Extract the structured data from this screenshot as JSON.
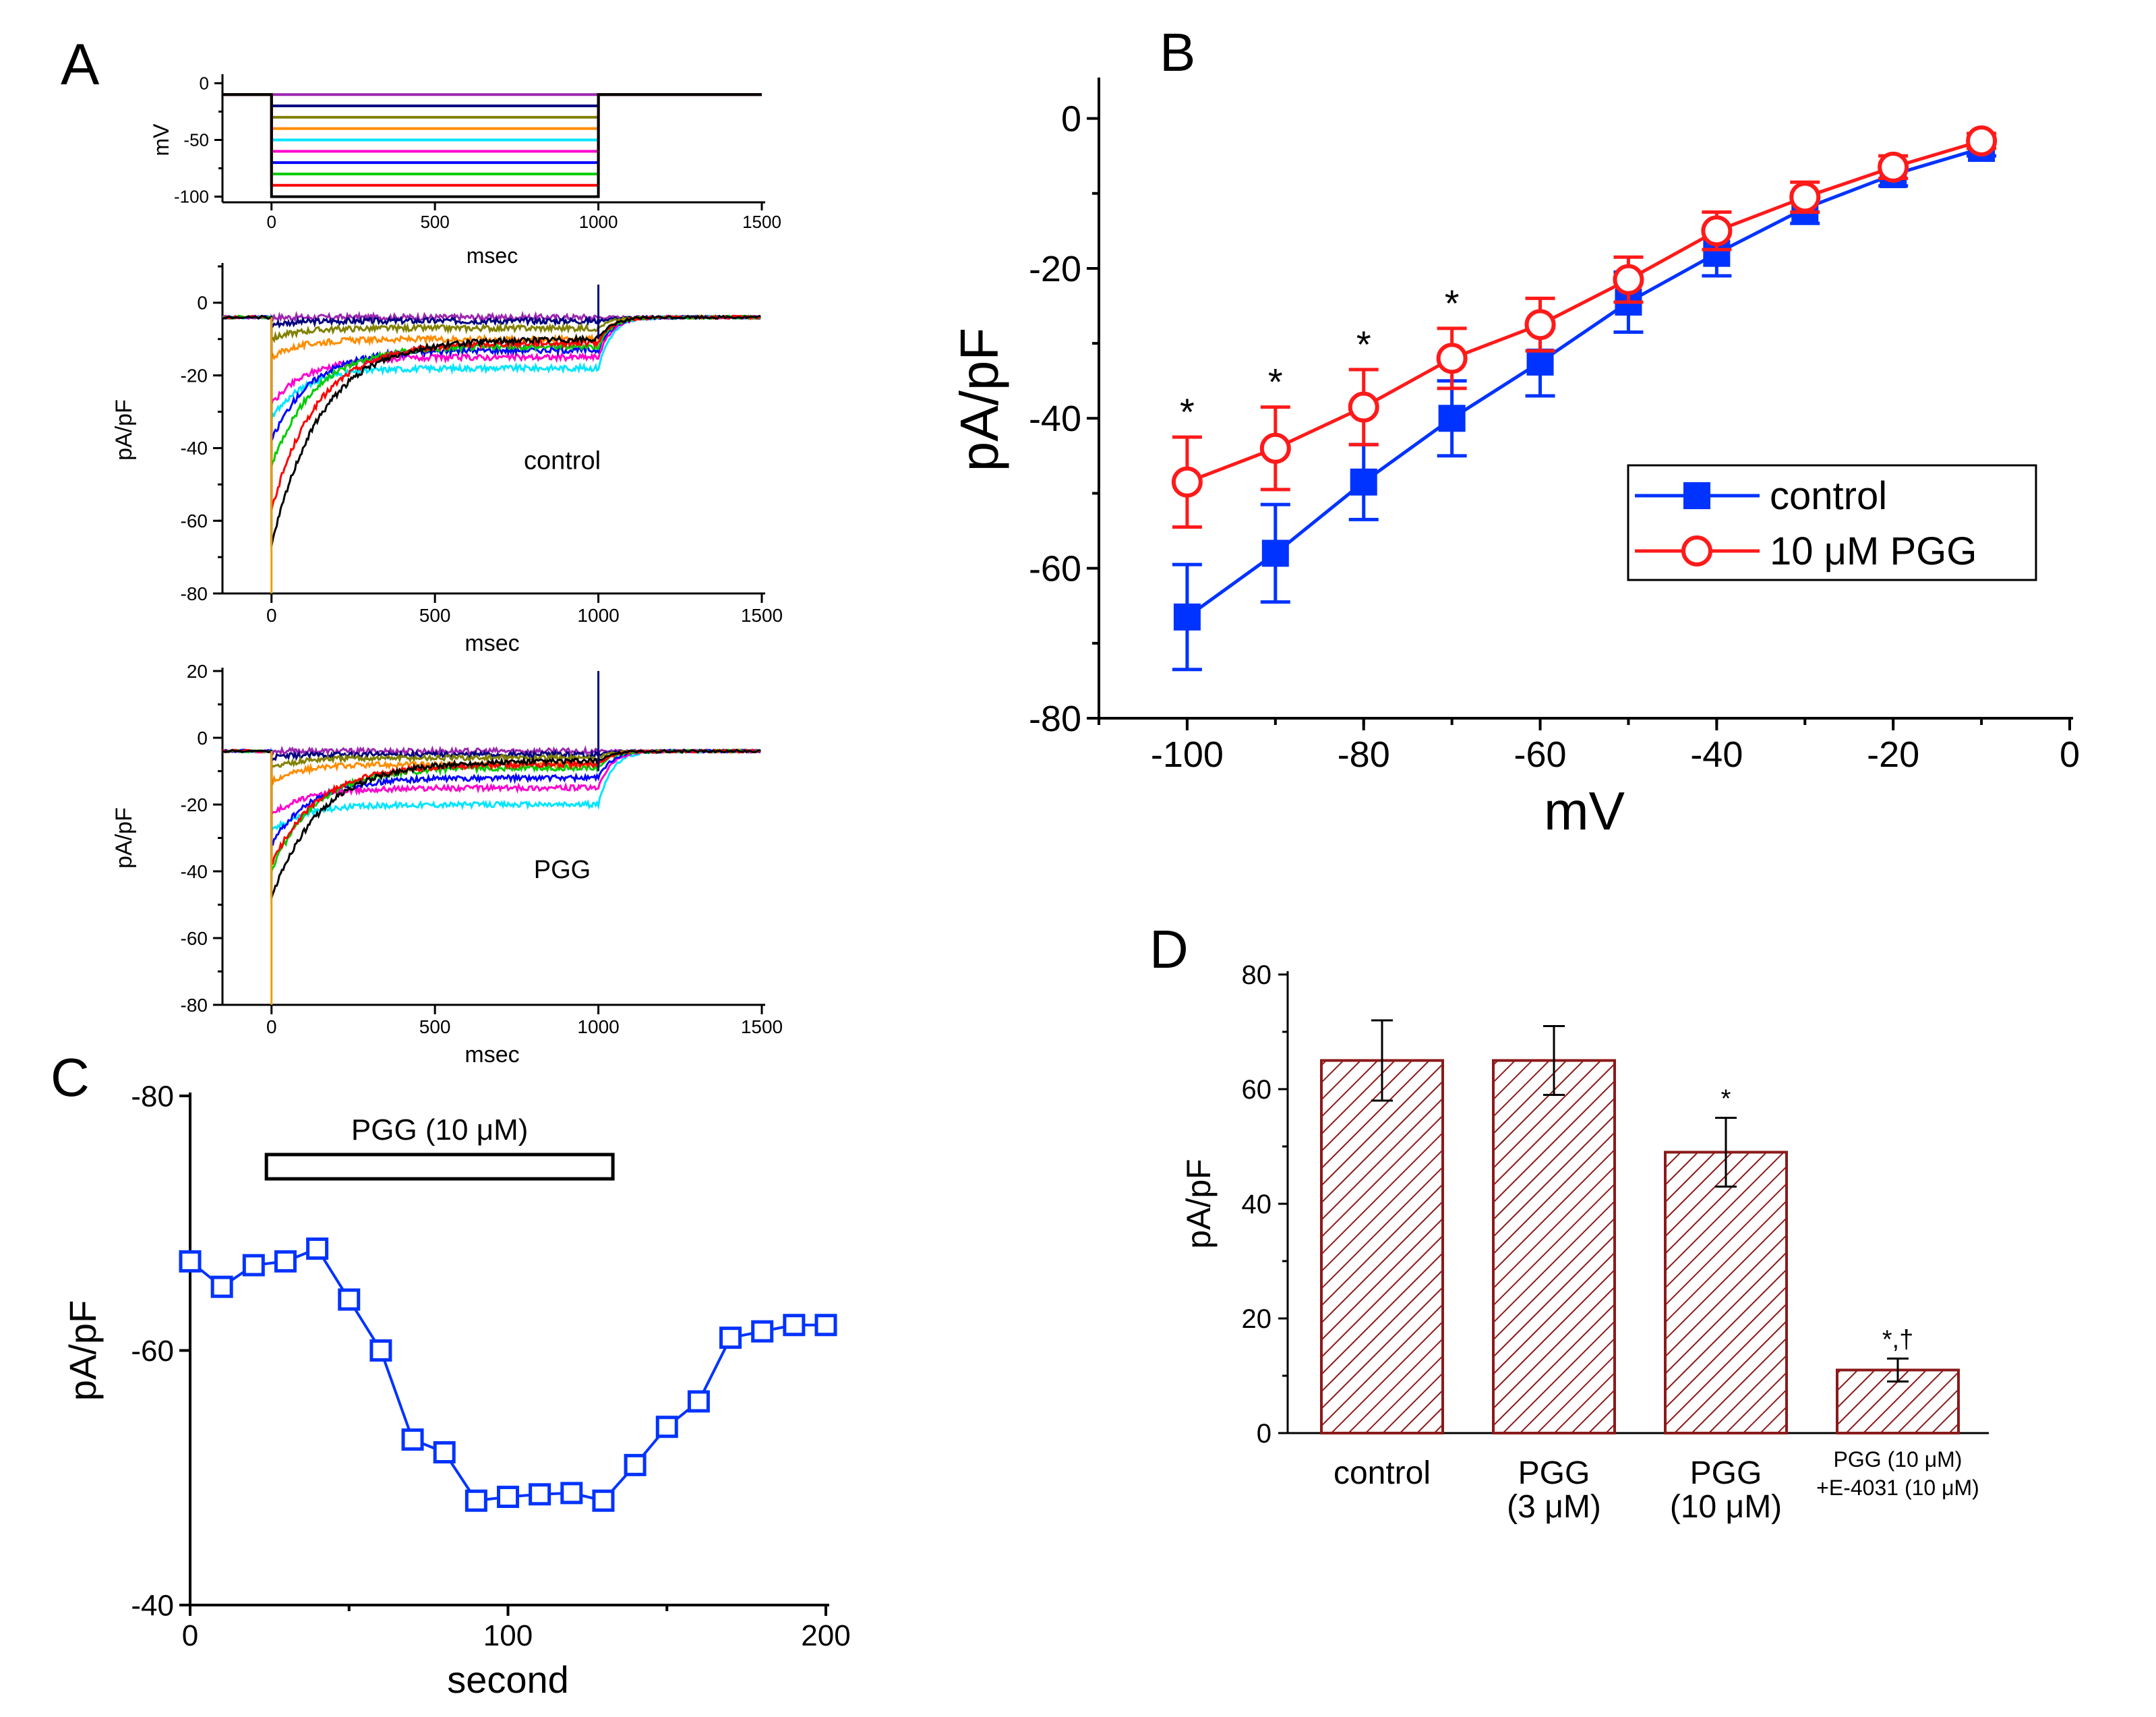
{
  "panel_labels": {
    "a": "A",
    "b": "B",
    "c": "C",
    "d": "D"
  },
  "chart_data": [
    {
      "id": "A1",
      "type": "line",
      "title": "",
      "xlabel": "msec",
      "ylabel": "mV",
      "xlim": [
        -150,
        1500
      ],
      "ylim": [
        -105,
        5
      ],
      "x_ticks": [
        "0",
        "500",
        "1000",
        "1500"
      ],
      "y_ticks": [
        "0",
        "-50",
        "-100"
      ],
      "holding_mV": -10,
      "step_start_ms": 0,
      "step_end_ms": 1000,
      "series": [
        {
          "name": "-10 mV",
          "step_mV": -10,
          "color": "#9c27b0"
        },
        {
          "name": "-20 mV",
          "step_mV": -20,
          "color": "#000080"
        },
        {
          "name": "-30 mV",
          "step_mV": -30,
          "color": "#808000"
        },
        {
          "name": "-40 mV",
          "step_mV": -40,
          "color": "#ff8c00"
        },
        {
          "name": "-50 mV",
          "step_mV": -50,
          "color": "#00e5ff"
        },
        {
          "name": "-60 mV",
          "step_mV": -60,
          "color": "#ff00cc"
        },
        {
          "name": "-70 mV",
          "step_mV": -70,
          "color": "#0000ff"
        },
        {
          "name": "-80 mV",
          "step_mV": -80,
          "color": "#00cc00"
        },
        {
          "name": "-90 mV",
          "step_mV": -90,
          "color": "#ff0000"
        },
        {
          "name": "-100 mV",
          "step_mV": -100,
          "color": "#000000"
        }
      ]
    },
    {
      "id": "A2",
      "type": "line",
      "annotation": "control",
      "xlabel": "msec",
      "ylabel": "pA/pF",
      "xlim": [
        -150,
        1500
      ],
      "ylim": [
        -80,
        10
      ],
      "x_ticks": [
        "0",
        "500",
        "1000",
        "1500"
      ],
      "y_ticks": [
        "0",
        "-20",
        "-40",
        "-60",
        "-80"
      ],
      "series": [
        {
          "name": "-10 mV",
          "color": "#9c27b0",
          "peak": -4,
          "end": -4
        },
        {
          "name": "-20 mV",
          "color": "#000080",
          "peak": -6,
          "end": -5
        },
        {
          "name": "-30 mV",
          "color": "#808000",
          "peak": -10,
          "end": -7
        },
        {
          "name": "-40 mV",
          "color": "#ff8c00",
          "peak": -15,
          "end": -10
        },
        {
          "name": "-50 mV",
          "color": "#00e5ff",
          "peak": -32,
          "end": -18
        },
        {
          "name": "-60 mV",
          "color": "#ff00cc",
          "peak": -28,
          "end": -15
        },
        {
          "name": "-70 mV",
          "color": "#0000ff",
          "peak": -38,
          "end": -13
        },
        {
          "name": "-80 mV",
          "color": "#00cc00",
          "peak": -45,
          "end": -12
        },
        {
          "name": "-90 mV",
          "color": "#ff0000",
          "peak": -57,
          "end": -11
        },
        {
          "name": "-100 mV",
          "color": "#000000",
          "peak": -67,
          "end": -10
        }
      ]
    },
    {
      "id": "A3",
      "type": "line",
      "annotation": "PGG",
      "xlabel": "msec",
      "ylabel": "pA/pF",
      "xlim": [
        -150,
        1500
      ],
      "ylim": [
        -80,
        20
      ],
      "x_ticks": [
        "0",
        "500",
        "1000",
        "1500"
      ],
      "y_ticks": [
        "20",
        "0",
        "-20",
        "-40",
        "-60",
        "-80"
      ],
      "series": [
        {
          "name": "-10 mV",
          "color": "#9c27b0",
          "peak": -4,
          "end": -4
        },
        {
          "name": "-20 mV",
          "color": "#000080",
          "peak": -6,
          "end": -5
        },
        {
          "name": "-30 mV",
          "color": "#808000",
          "peak": -9,
          "end": -6
        },
        {
          "name": "-40 mV",
          "color": "#ff8c00",
          "peak": -13,
          "end": -8
        },
        {
          "name": "-50 mV",
          "color": "#00e5ff",
          "peak": -28,
          "end": -20
        },
        {
          "name": "-60 mV",
          "color": "#ff00cc",
          "peak": -23,
          "end": -15
        },
        {
          "name": "-70 mV",
          "color": "#0000ff",
          "peak": -32,
          "end": -12
        },
        {
          "name": "-80 mV",
          "color": "#00cc00",
          "peak": -40,
          "end": -9
        },
        {
          "name": "-90 mV",
          "color": "#ff0000",
          "peak": -38,
          "end": -8
        },
        {
          "name": "-100 mV",
          "color": "#000000",
          "peak": -48,
          "end": -7
        }
      ]
    },
    {
      "id": "B",
      "type": "line",
      "xlabel": "mV",
      "ylabel": "pA/pF",
      "xlim": [
        -110,
        0
      ],
      "ylim": [
        -80,
        5
      ],
      "x_ticks": [
        "-100",
        "-80",
        "-60",
        "-40",
        "-20",
        "0"
      ],
      "y_ticks": [
        "0",
        "-20",
        "-40",
        "-60",
        "-80"
      ],
      "legend": "right-middle",
      "significance_marks": [
        {
          "x": -100,
          "text": "*"
        },
        {
          "x": -90,
          "text": "*"
        },
        {
          "x": -80,
          "text": "*"
        },
        {
          "x": -70,
          "text": "*"
        }
      ],
      "series": [
        {
          "name": "control",
          "color": "#0033ff",
          "marker": "filled-square",
          "x": [
            -100,
            -90,
            -80,
            -70,
            -60,
            -50,
            -40,
            -30,
            -20,
            -10
          ],
          "y": [
            -66.5,
            -58,
            -48.5,
            -40,
            -32.5,
            -24.5,
            -18,
            -12,
            -7.5,
            -4
          ],
          "err": [
            7,
            6.5,
            5,
            5,
            4.5,
            4,
            3,
            2,
            1.5,
            1
          ]
        },
        {
          "name": "10 μM PGG",
          "color": "#ff1a1a",
          "marker": "open-circle",
          "x": [
            -100,
            -90,
            -80,
            -70,
            -60,
            -50,
            -40,
            -30,
            -20,
            -10
          ],
          "y": [
            -48.5,
            -44,
            -38.5,
            -32,
            -27.5,
            -21.5,
            -15,
            -10.5,
            -6.5,
            -3
          ],
          "err": [
            6,
            5.5,
            5,
            4,
            3.5,
            3,
            2.5,
            2,
            1.5,
            1
          ]
        }
      ]
    },
    {
      "id": "C",
      "type": "line",
      "xlabel": "second",
      "ylabel": "pA/pF",
      "xlim": [
        0,
        200
      ],
      "ylim": [
        -40,
        -80
      ],
      "x_ticks": [
        "0",
        "100",
        "200"
      ],
      "y_ticks": [
        "-80",
        "-60",
        "-40"
      ],
      "bar_label": "PGG (10 μM)",
      "bar_range": [
        24,
        133
      ],
      "series": [
        {
          "name": "current",
          "color": "#0033ff",
          "marker": "open-square",
          "x": [
            0,
            10,
            20,
            30,
            40,
            50,
            60,
            70,
            80,
            90,
            100,
            110,
            120,
            130,
            140,
            150,
            160,
            170,
            180,
            190,
            200
          ],
          "y": [
            -67,
            -65,
            -66.7,
            -67,
            -68,
            -64,
            -60,
            -53,
            -52,
            -48.2,
            -48.5,
            -48.7,
            -48.8,
            -48.2,
            -51,
            -54,
            -56,
            -61,
            -61.5,
            -62,
            -62
          ]
        }
      ]
    },
    {
      "id": "D",
      "type": "bar",
      "xlabel": "",
      "ylabel": "pA/pF",
      "ylim": [
        0,
        80
      ],
      "y_ticks": [
        "0",
        "20",
        "40",
        "60",
        "80"
      ],
      "bar_color": "#8b1a1a",
      "categories": [
        [
          "control"
        ],
        [
          "PGG",
          "(3 μM)"
        ],
        [
          "PGG",
          "(10 μM)"
        ],
        [
          "PGG (10 μM)",
          "+E-4031 (10 μM)"
        ]
      ],
      "values": [
        65,
        65,
        49,
        11
      ],
      "err": [
        7,
        6,
        6,
        2
      ],
      "marks": [
        "",
        "",
        "*",
        "*,†"
      ]
    }
  ]
}
